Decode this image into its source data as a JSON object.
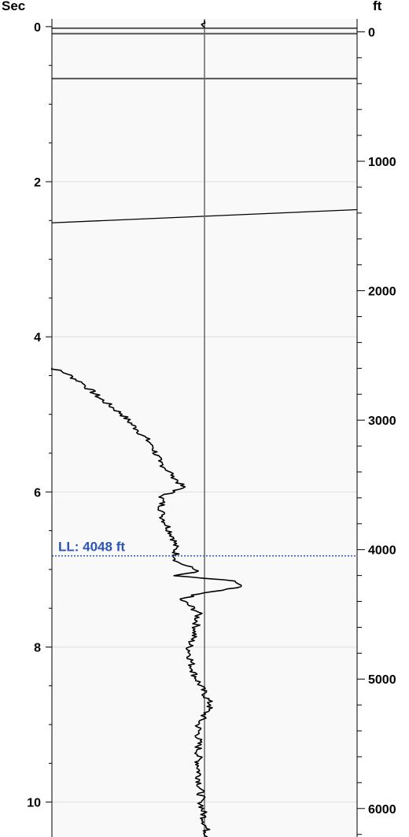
{
  "chart_data": {
    "type": "line",
    "left_axis": {
      "label": "Sec",
      "range": [
        -0.1,
        10.45
      ],
      "major_ticks": [
        0,
        2,
        4,
        6,
        8,
        10
      ],
      "tick_labels": [
        "0",
        "2",
        "4",
        "6",
        "8",
        "10"
      ],
      "minor_step": 0.5
    },
    "right_axis": {
      "label": "ft",
      "range": [
        -100,
        6220
      ],
      "major_ticks": [
        0,
        1000,
        2000,
        3000,
        4000,
        5000,
        6000
      ],
      "tick_labels": [
        "0",
        "1000",
        "2000",
        "3000",
        "4000",
        "5000",
        "6000"
      ],
      "minor_step": 200
    },
    "gridlines": [
      2,
      4,
      6,
      8,
      10
    ],
    "grid": true,
    "reference_lines": [
      {
        "type": "horizontal",
        "sec": 0.02
      },
      {
        "type": "horizontal",
        "sec": 0.09
      },
      {
        "type": "horizontal",
        "sec": 0.67
      },
      {
        "type": "sloped",
        "from": {
          "x": 0.0,
          "sec": 2.53
        },
        "to": {
          "x": 1.0,
          "sec": 2.36
        }
      },
      {
        "type": "vertical",
        "x": 0.5
      }
    ],
    "marker_line": {
      "label": "LL: 4048 ft",
      "depth_ft": 4048,
      "color": "#2b56b3"
    },
    "series": [
      {
        "color": "#000000",
        "points": [
          {
            "sec": -0.08,
            "x": 0.5
          },
          {
            "sec": 0.02,
            "x": 0.5
          },
          {
            "sec": 4.4,
            "x": 0.0
          },
          {
            "sec": 4.48,
            "x": 0.05
          },
          {
            "sec": 4.6,
            "x": 0.1
          },
          {
            "sec": 4.8,
            "x": 0.16
          },
          {
            "sec": 5.0,
            "x": 0.23
          },
          {
            "sec": 5.2,
            "x": 0.28
          },
          {
            "sec": 5.4,
            "x": 0.33
          },
          {
            "sec": 5.6,
            "x": 0.35
          },
          {
            "sec": 5.8,
            "x": 0.4
          },
          {
            "sec": 5.95,
            "x": 0.43
          },
          {
            "sec": 6.05,
            "x": 0.36
          },
          {
            "sec": 6.3,
            "x": 0.36
          },
          {
            "sec": 6.6,
            "x": 0.4
          },
          {
            "sec": 6.9,
            "x": 0.41
          },
          {
            "sec": 7.02,
            "x": 0.48
          },
          {
            "sec": 7.08,
            "x": 0.4
          },
          {
            "sec": 7.15,
            "x": 0.6
          },
          {
            "sec": 7.22,
            "x": 0.62
          },
          {
            "sec": 7.3,
            "x": 0.5
          },
          {
            "sec": 7.38,
            "x": 0.42
          },
          {
            "sec": 7.55,
            "x": 0.48
          },
          {
            "sec": 7.8,
            "x": 0.47
          },
          {
            "sec": 8.0,
            "x": 0.45
          },
          {
            "sec": 8.3,
            "x": 0.46
          },
          {
            "sec": 8.6,
            "x": 0.5
          },
          {
            "sec": 8.75,
            "x": 0.52
          },
          {
            "sec": 9.0,
            "x": 0.48
          },
          {
            "sec": 9.5,
            "x": 0.48
          },
          {
            "sec": 10.0,
            "x": 0.49
          },
          {
            "sec": 10.45,
            "x": 0.51
          }
        ]
      }
    ]
  }
}
